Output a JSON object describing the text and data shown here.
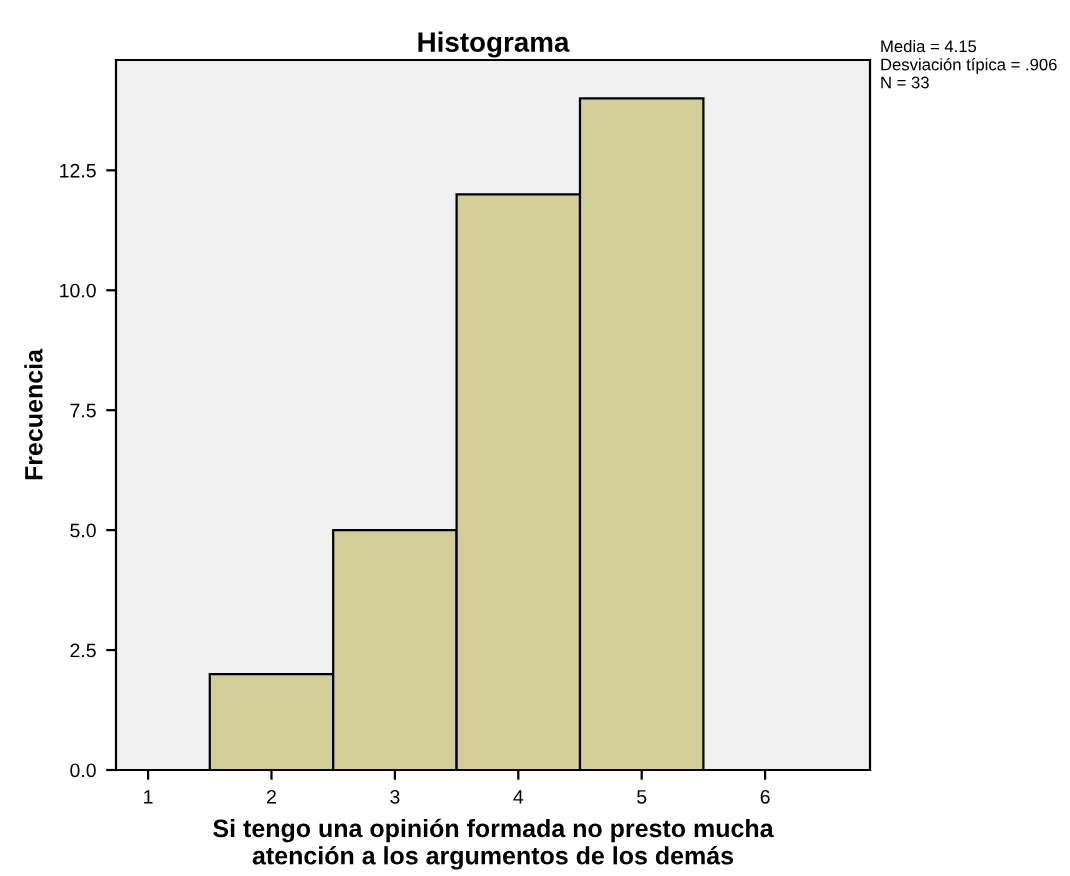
{
  "chart_data": {
    "type": "histogram",
    "title": "Histograma",
    "xlabel": "Si tengo una opinión formada no presto mucha\natención a los argumentos de los demás",
    "ylabel": "Frecuencia",
    "bins": [
      1.5,
      2.5,
      3.5,
      4.5,
      5.5
    ],
    "values": [
      2,
      5,
      12,
      14
    ],
    "color": "#d3ce97",
    "xlim": [
      0.74,
      6.85
    ],
    "xticks": [
      1,
      2,
      3,
      4,
      5,
      6
    ],
    "ylim": [
      0,
      14.8
    ],
    "yticks": [
      {
        "value": 0,
        "label": "0.0"
      },
      {
        "value": 2.5,
        "label": "2.5"
      },
      {
        "value": 5,
        "label": "5.0"
      },
      {
        "value": 7.5,
        "label": "7.5"
      },
      {
        "value": 10,
        "label": "10.0"
      },
      {
        "value": 12.5,
        "label": "12.5"
      }
    ],
    "grid": false,
    "annotations": [
      "Media = 4.15\nDesviación típica = .906\nN = 33"
    ]
  }
}
